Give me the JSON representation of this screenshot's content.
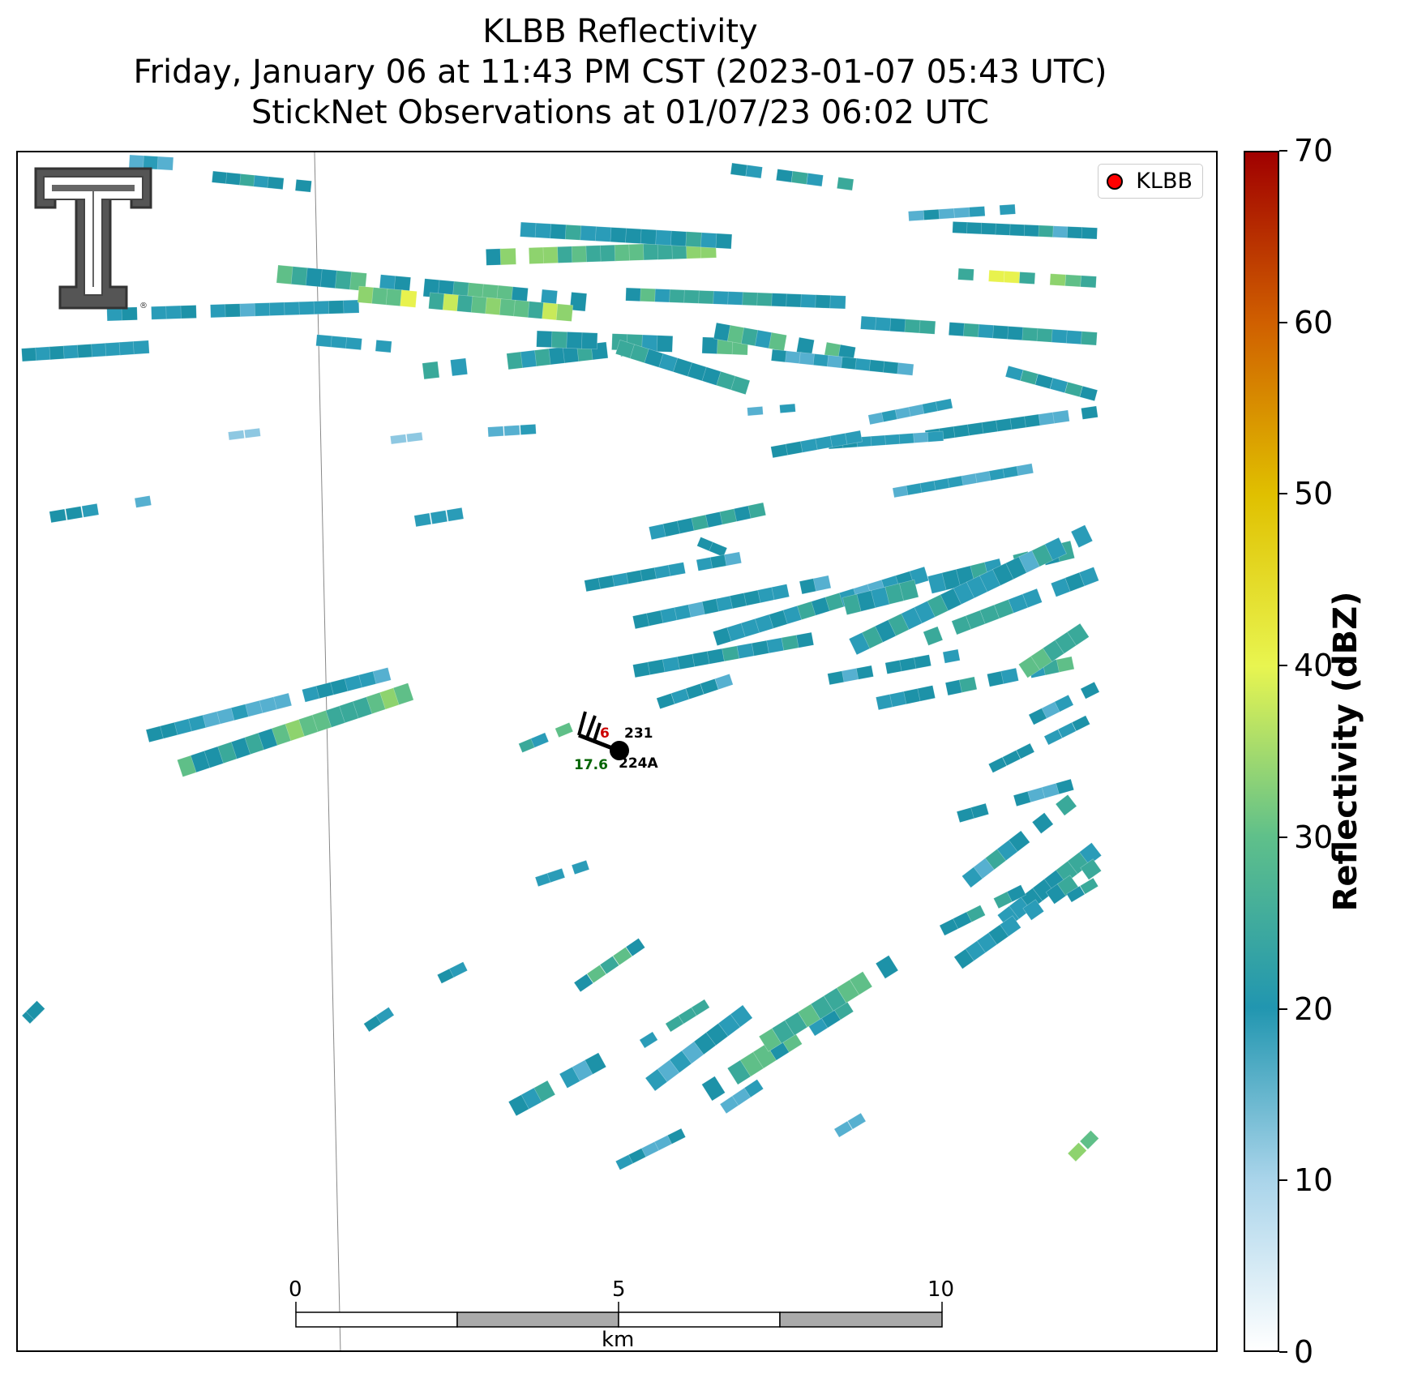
{
  "title": {
    "line1": "KLBB Reflectivity",
    "line2": "Friday, January 06 at 11:43 PM CST (2023-01-07 05:43 UTC)",
    "line3": "StickNet Observations at 01/07/23 06:02 UTC"
  },
  "legend": {
    "label": "KLBB",
    "marker_color": "#ff0000"
  },
  "logo": {
    "name": "texas-tech-double-t-logo",
    "mark": "®"
  },
  "stations": [
    {
      "id": "231",
      "temperature_partial": "6",
      "temperature_color": "#cc0000"
    },
    {
      "id": "224A",
      "dewpoint": "17.6",
      "dewpoint_color": "#006400"
    }
  ],
  "scalebar": {
    "ticks": [
      "0",
      "5",
      "10"
    ],
    "unit": "km"
  },
  "colorbar": {
    "label": "Reflectivity (dBZ)",
    "min": 0,
    "max": 70,
    "ticks": [
      "0",
      "10",
      "20",
      "30",
      "40",
      "50",
      "60",
      "70"
    ],
    "colors": [
      "#ffffff",
      "#a9d4ea",
      "#2196b0",
      "#5fc08a",
      "#e8f550",
      "#e0c000",
      "#d06000",
      "#a00000"
    ]
  }
}
